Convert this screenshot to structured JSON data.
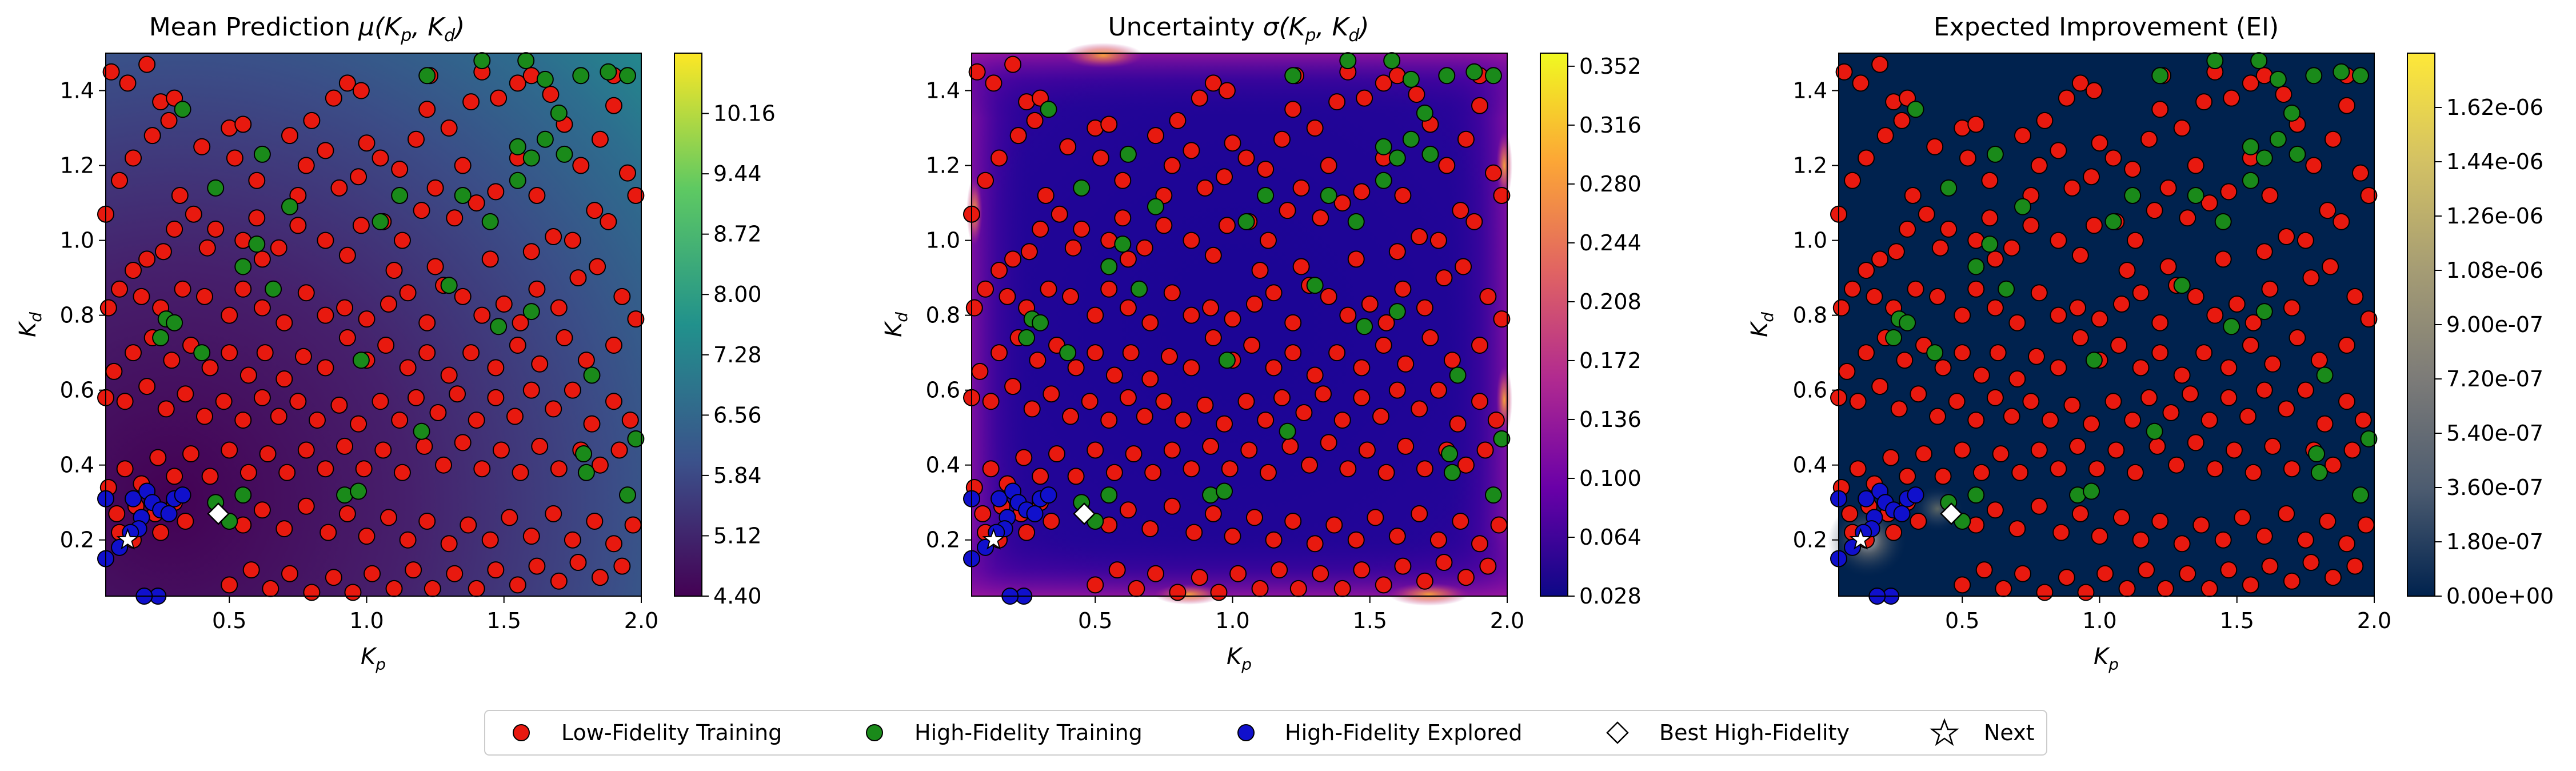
{
  "chart_data": [
    {
      "type": "heatmap",
      "title": "Mean Prediction μ(K_p, K_d)",
      "title_parts": {
        "prefix": "Mean Prediction ",
        "sym": "μ",
        "args": "(K",
        "sub1": "p",
        "comma": ", K",
        "sub2": "d",
        "close": ")"
      },
      "xlabel": "K",
      "xlabel_sub": "p",
      "ylabel": "K",
      "ylabel_sub": "d",
      "xlim": [
        0.05,
        2.0
      ],
      "ylim": [
        0.05,
        1.5
      ],
      "xticks": [
        "0.5",
        "1.0",
        "1.5",
        "2.0"
      ],
      "yticks": [
        "0.2",
        "0.4",
        "0.6",
        "0.8",
        "1.0",
        "1.2",
        "1.4"
      ],
      "colormap": "viridis",
      "colorbar_range": [
        4.4,
        10.88
      ],
      "colorbar_ticks": [
        "4.40",
        "5.12",
        "5.84",
        "6.56",
        "7.28",
        "8.00",
        "8.72",
        "9.44",
        "10.16"
      ]
    },
    {
      "type": "heatmap",
      "title": "Uncertainty σ(K_p, K_d)",
      "title_parts": {
        "prefix": "Uncertainty ",
        "sym": "σ",
        "args": "(K",
        "sub1": "p",
        "comma": ", K",
        "sub2": "d",
        "close": ")"
      },
      "xlabel": "K",
      "xlabel_sub": "p",
      "ylabel": "K",
      "ylabel_sub": "d",
      "xlim": [
        0.05,
        2.0
      ],
      "ylim": [
        0.05,
        1.5
      ],
      "xticks": [
        "0.5",
        "1.0",
        "1.5",
        "2.0"
      ],
      "yticks": [
        "0.2",
        "0.4",
        "0.6",
        "0.8",
        "1.0",
        "1.2",
        "1.4"
      ],
      "colormap": "plasma",
      "colorbar_range": [
        0.028,
        0.36
      ],
      "colorbar_ticks": [
        "0.028",
        "0.064",
        "0.100",
        "0.136",
        "0.172",
        "0.208",
        "0.244",
        "0.280",
        "0.316",
        "0.352"
      ]
    },
    {
      "type": "heatmap",
      "title": "Expected Improvement (EI)",
      "xlabel": "K",
      "xlabel_sub": "p",
      "ylabel": "K",
      "ylabel_sub": "d",
      "xlim": [
        0.05,
        2.0
      ],
      "ylim": [
        0.05,
        1.5
      ],
      "xticks": [
        "0.5",
        "1.0",
        "1.5",
        "2.0"
      ],
      "yticks": [
        "0.2",
        "0.4",
        "0.6",
        "0.8",
        "1.0",
        "1.2",
        "1.4"
      ],
      "colormap": "cividis",
      "colorbar_range": [
        0.0,
        1.8e-06
      ],
      "colorbar_ticks": [
        "0.00e+00",
        "1.80e-07",
        "3.60e-07",
        "5.40e-07",
        "7.20e-07",
        "9.00e-07",
        "1.08e-06",
        "1.26e-06",
        "1.44e-06",
        "1.62e-06"
      ]
    }
  ],
  "scatter": {
    "low_fidelity": [
      [
        0.07,
        1.45
      ],
      [
        0.2,
        1.47
      ],
      [
        0.13,
        1.42
      ],
      [
        0.25,
        1.37
      ],
      [
        0.3,
        1.38
      ],
      [
        0.28,
        1.32
      ],
      [
        0.22,
        1.28
      ],
      [
        0.15,
        1.22
      ],
      [
        0.1,
        1.16
      ],
      [
        0.05,
        1.07
      ],
      [
        0.5,
        1.3
      ],
      [
        0.55,
        1.31
      ],
      [
        0.52,
        1.22
      ],
      [
        0.6,
        1.16
      ],
      [
        0.72,
        1.28
      ],
      [
        0.8,
        1.32
      ],
      [
        0.88,
        1.38
      ],
      [
        0.93,
        1.42
      ],
      [
        0.98,
        1.4
      ],
      [
        0.78,
        1.2
      ],
      [
        0.85,
        1.24
      ],
      [
        0.9,
        1.14
      ],
      [
        0.97,
        1.17
      ],
      [
        1.0,
        1.26
      ],
      [
        1.05,
        1.22
      ],
      [
        1.12,
        1.19
      ],
      [
        1.18,
        1.27
      ],
      [
        1.23,
        1.44
      ],
      [
        1.22,
        1.35
      ],
      [
        1.3,
        1.3
      ],
      [
        1.38,
        1.37
      ],
      [
        1.42,
        1.45
      ],
      [
        1.48,
        1.38
      ],
      [
        1.55,
        1.42
      ],
      [
        1.6,
        1.44
      ],
      [
        1.67,
        1.39
      ],
      [
        1.72,
        1.31
      ],
      [
        1.78,
        1.2
      ],
      [
        1.85,
        1.27
      ],
      [
        1.9,
        1.36
      ],
      [
        1.95,
        1.18
      ],
      [
        1.98,
        1.12
      ],
      [
        1.88,
        1.05
      ],
      [
        1.83,
        1.08
      ],
      [
        1.75,
        1.0
      ],
      [
        1.68,
        1.01
      ],
      [
        1.62,
        1.12
      ],
      [
        1.55,
        1.22
      ],
      [
        1.47,
        1.13
      ],
      [
        1.4,
        1.1
      ],
      [
        1.32,
        1.06
      ],
      [
        1.25,
        1.14
      ],
      [
        1.2,
        1.08
      ],
      [
        1.13,
        1.0
      ],
      [
        1.06,
        1.05
      ],
      [
        0.98,
        1.04
      ],
      [
        0.93,
        0.96
      ],
      [
        0.85,
        1.0
      ],
      [
        0.75,
        1.04
      ],
      [
        0.68,
        0.98
      ],
      [
        0.62,
        0.95
      ],
      [
        0.55,
        1.0
      ],
      [
        0.45,
        1.03
      ],
      [
        0.42,
        0.98
      ],
      [
        0.37,
        1.07
      ],
      [
        0.32,
        1.12
      ],
      [
        0.3,
        1.03
      ],
      [
        0.26,
        0.97
      ],
      [
        0.2,
        0.95
      ],
      [
        0.15,
        0.92
      ],
      [
        0.1,
        0.87
      ],
      [
        0.06,
        0.82
      ],
      [
        0.18,
        0.85
      ],
      [
        0.25,
        0.82
      ],
      [
        0.33,
        0.87
      ],
      [
        0.41,
        0.85
      ],
      [
        0.5,
        0.8
      ],
      [
        0.55,
        0.87
      ],
      [
        0.62,
        0.82
      ],
      [
        0.7,
        0.78
      ],
      [
        0.78,
        0.86
      ],
      [
        0.85,
        0.8
      ],
      [
        0.92,
        0.82
      ],
      [
        1.0,
        0.79
      ],
      [
        1.08,
        0.83
      ],
      [
        1.15,
        0.86
      ],
      [
        1.22,
        0.78
      ],
      [
        1.28,
        0.88
      ],
      [
        1.35,
        0.85
      ],
      [
        1.42,
        0.8
      ],
      [
        1.5,
        0.83
      ],
      [
        1.56,
        0.78
      ],
      [
        1.62,
        0.87
      ],
      [
        1.7,
        0.82
      ],
      [
        1.77,
        0.9
      ],
      [
        1.84,
        0.93
      ],
      [
        1.93,
        0.85
      ],
      [
        1.98,
        0.79
      ],
      [
        1.9,
        0.72
      ],
      [
        1.8,
        0.68
      ],
      [
        1.72,
        0.74
      ],
      [
        1.63,
        0.67
      ],
      [
        1.55,
        0.72
      ],
      [
        1.47,
        0.66
      ],
      [
        1.38,
        0.7
      ],
      [
        1.3,
        0.64
      ],
      [
        1.22,
        0.7
      ],
      [
        1.15,
        0.66
      ],
      [
        1.07,
        0.72
      ],
      [
        1.0,
        0.68
      ],
      [
        0.93,
        0.74
      ],
      [
        0.85,
        0.66
      ],
      [
        0.77,
        0.69
      ],
      [
        0.7,
        0.63
      ],
      [
        0.63,
        0.7
      ],
      [
        0.57,
        0.64
      ],
      [
        0.5,
        0.7
      ],
      [
        0.43,
        0.66
      ],
      [
        0.36,
        0.72
      ],
      [
        0.29,
        0.68
      ],
      [
        0.22,
        0.74
      ],
      [
        0.15,
        0.7
      ],
      [
        0.08,
        0.65
      ],
      [
        0.05,
        0.58
      ],
      [
        0.12,
        0.57
      ],
      [
        0.2,
        0.61
      ],
      [
        0.27,
        0.55
      ],
      [
        0.34,
        0.59
      ],
      [
        0.41,
        0.53
      ],
      [
        0.48,
        0.57
      ],
      [
        0.55,
        0.52
      ],
      [
        0.62,
        0.58
      ],
      [
        0.68,
        0.53
      ],
      [
        0.75,
        0.57
      ],
      [
        0.82,
        0.52
      ],
      [
        0.9,
        0.56
      ],
      [
        0.97,
        0.51
      ],
      [
        1.05,
        0.57
      ],
      [
        1.12,
        0.52
      ],
      [
        1.18,
        0.58
      ],
      [
        1.26,
        0.54
      ],
      [
        1.33,
        0.59
      ],
      [
        1.4,
        0.52
      ],
      [
        1.47,
        0.58
      ],
      [
        1.54,
        0.53
      ],
      [
        1.6,
        0.6
      ],
      [
        1.68,
        0.55
      ],
      [
        1.75,
        0.6
      ],
      [
        1.82,
        0.51
      ],
      [
        1.9,
        0.57
      ],
      [
        1.96,
        0.52
      ],
      [
        1.92,
        0.44
      ],
      [
        1.85,
        0.4
      ],
      [
        1.78,
        0.44
      ],
      [
        1.7,
        0.39
      ],
      [
        1.63,
        0.45
      ],
      [
        1.56,
        0.38
      ],
      [
        1.49,
        0.44
      ],
      [
        1.42,
        0.39
      ],
      [
        1.35,
        0.46
      ],
      [
        1.28,
        0.4
      ],
      [
        1.21,
        0.45
      ],
      [
        1.13,
        0.38
      ],
      [
        1.06,
        0.44
      ],
      [
        0.99,
        0.39
      ],
      [
        0.92,
        0.45
      ],
      [
        0.85,
        0.39
      ],
      [
        0.78,
        0.44
      ],
      [
        0.71,
        0.38
      ],
      [
        0.64,
        0.43
      ],
      [
        0.57,
        0.38
      ],
      [
        0.5,
        0.44
      ],
      [
        0.43,
        0.37
      ],
      [
        0.36,
        0.43
      ],
      [
        0.3,
        0.37
      ],
      [
        0.24,
        0.42
      ],
      [
        0.18,
        0.35
      ],
      [
        0.12,
        0.39
      ],
      [
        0.06,
        0.34
      ],
      [
        0.09,
        0.27
      ],
      [
        0.16,
        0.29
      ],
      [
        0.23,
        0.27
      ],
      [
        0.3,
        0.3
      ],
      [
        0.34,
        0.25
      ],
      [
        0.25,
        0.22
      ],
      [
        0.15,
        0.2
      ],
      [
        0.1,
        0.22
      ],
      [
        0.55,
        0.24
      ],
      [
        0.62,
        0.28
      ],
      [
        0.7,
        0.23
      ],
      [
        0.78,
        0.29
      ],
      [
        0.86,
        0.22
      ],
      [
        0.93,
        0.27
      ],
      [
        1.0,
        0.21
      ],
      [
        1.08,
        0.26
      ],
      [
        1.15,
        0.2
      ],
      [
        1.22,
        0.25
      ],
      [
        1.3,
        0.19
      ],
      [
        1.37,
        0.24
      ],
      [
        1.45,
        0.2
      ],
      [
        1.52,
        0.26
      ],
      [
        1.6,
        0.21
      ],
      [
        1.68,
        0.27
      ],
      [
        1.75,
        0.2
      ],
      [
        1.83,
        0.25
      ],
      [
        1.9,
        0.19
      ],
      [
        1.97,
        0.24
      ],
      [
        1.93,
        0.13
      ],
      [
        1.85,
        0.1
      ],
      [
        1.77,
        0.14
      ],
      [
        1.7,
        0.09
      ],
      [
        1.62,
        0.13
      ],
      [
        1.55,
        0.08
      ],
      [
        1.47,
        0.12
      ],
      [
        1.4,
        0.07
      ],
      [
        1.32,
        0.11
      ],
      [
        1.24,
        0.07
      ],
      [
        1.17,
        0.12
      ],
      [
        1.1,
        0.07
      ],
      [
        1.02,
        0.11
      ],
      [
        0.95,
        0.06
      ],
      [
        0.88,
        0.1
      ],
      [
        0.8,
        0.06
      ],
      [
        0.72,
        0.11
      ],
      [
        0.65,
        0.07
      ],
      [
        0.58,
        0.12
      ],
      [
        0.5,
        0.08
      ],
      [
        1.25,
        0.93
      ],
      [
        1.45,
        0.95
      ],
      [
        1.6,
        0.97
      ],
      [
        1.1,
        0.92
      ],
      [
        0.6,
        1.06
      ],
      [
        0.75,
        1.12
      ],
      [
        1.9,
        1.44
      ],
      [
        0.4,
        1.25
      ],
      [
        1.35,
        1.2
      ]
    ],
    "high_fidelity": [
      [
        0.33,
        1.35
      ],
      [
        0.45,
        1.14
      ],
      [
        0.62,
        1.23
      ],
      [
        0.72,
        1.09
      ],
      [
        0.55,
        0.93
      ],
      [
        0.66,
        0.87
      ],
      [
        0.4,
        0.7
      ],
      [
        0.25,
        0.74
      ],
      [
        0.27,
        0.79
      ],
      [
        0.3,
        0.78
      ],
      [
        0.98,
        0.68
      ],
      [
        1.05,
        1.05
      ],
      [
        1.12,
        1.12
      ],
      [
        1.22,
        1.44
      ],
      [
        1.42,
        1.48
      ],
      [
        1.58,
        1.48
      ],
      [
        1.65,
        1.43
      ],
      [
        1.78,
        1.44
      ],
      [
        1.88,
        1.45
      ],
      [
        1.95,
        1.44
      ],
      [
        1.55,
        1.25
      ],
      [
        1.6,
        1.22
      ],
      [
        1.65,
        1.27
      ],
      [
        1.72,
        1.23
      ],
      [
        1.55,
        1.16
      ],
      [
        1.35,
        1.12
      ],
      [
        1.3,
        0.88
      ],
      [
        1.48,
        0.77
      ],
      [
        1.82,
        0.64
      ],
      [
        1.98,
        0.47
      ],
      [
        1.79,
        0.43
      ],
      [
        1.8,
        0.38
      ],
      [
        1.95,
        0.32
      ],
      [
        1.2,
        0.49
      ],
      [
        0.92,
        0.32
      ],
      [
        0.97,
        0.33
      ],
      [
        0.55,
        0.32
      ],
      [
        0.5,
        0.25
      ],
      [
        0.45,
        0.3
      ],
      [
        1.6,
        0.81
      ],
      [
        1.7,
        1.34
      ],
      [
        0.6,
        0.99
      ],
      [
        1.45,
        1.05
      ]
    ],
    "high_fidelity_explored": [
      [
        0.05,
        0.31
      ],
      [
        0.15,
        0.31
      ],
      [
        0.2,
        0.33
      ],
      [
        0.22,
        0.3
      ],
      [
        0.25,
        0.28
      ],
      [
        0.18,
        0.26
      ],
      [
        0.17,
        0.23
      ],
      [
        0.14,
        0.22
      ],
      [
        0.28,
        0.27
      ],
      [
        0.3,
        0.31
      ],
      [
        0.33,
        0.32
      ],
      [
        0.24,
        0.05
      ],
      [
        0.19,
        0.05
      ],
      [
        0.05,
        0.15
      ],
      [
        0.1,
        0.18
      ]
    ],
    "best_high_fidelity": [
      0.46,
      0.27
    ],
    "next": [
      0.13,
      0.2
    ]
  },
  "legend": {
    "items": [
      "Low-Fidelity Training",
      "High-Fidelity Training",
      "High-Fidelity Explored",
      "Best High-Fidelity",
      "Next"
    ],
    "placement": "bottom-center"
  },
  "colors": {
    "low_fidelity": "#e8190f",
    "high_fidelity": "#1a8a1a",
    "explored": "#1010cc",
    "best": "#ffffff",
    "next": "#ffffff",
    "marker_edge": "#000000"
  }
}
